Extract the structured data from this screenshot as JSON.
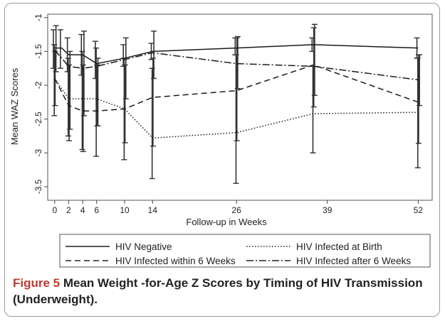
{
  "figure": {
    "label": "Figure 5",
    "title": "Mean Weight -for-Age Z Scores by Timing of HIV Transmission (Underweight)."
  },
  "chart_data": {
    "type": "line",
    "title": "",
    "xlabel": "Follow-up in Weeks",
    "ylabel": "Mean WAZ Scores",
    "x_ticks": [
      0,
      2,
      4,
      6,
      10,
      14,
      26,
      39,
      52
    ],
    "y_ticks": [
      -1,
      -1.5,
      -2,
      -2.5,
      -3,
      -3.5
    ],
    "y_tick_labels": [
      "-1",
      "-1.5",
      "-2",
      "-2.5",
      "-3",
      "-3.5"
    ],
    "xlim": [
      -1,
      54
    ],
    "ylim": [
      -3.7,
      -0.95
    ],
    "grid": false,
    "legend_position": "bottom",
    "series": [
      {
        "name": "HIV  Negative",
        "style": "solid",
        "x": [
          0,
          1,
          2,
          4,
          6,
          10,
          14,
          26,
          37,
          52
        ],
        "y": [
          -1.45,
          -1.45,
          -1.55,
          -1.55,
          -1.68,
          -1.6,
          -1.5,
          -1.45,
          -1.4,
          -1.45
        ],
        "err_low": [
          -1.75,
          -1.75,
          -1.8,
          -1.85,
          -1.9,
          -1.72,
          -1.62,
          -1.55,
          -1.5,
          -1.6
        ],
        "err_high": [
          -1.18,
          -1.18,
          -1.3,
          -1.25,
          -1.35,
          -1.4,
          -1.38,
          -1.3,
          -1.3,
          -1.3
        ]
      },
      {
        "name": "HIV Infected  at Birth",
        "style": "dotted",
        "x": [
          0,
          2,
          4,
          6,
          10,
          14,
          26,
          37,
          52
        ],
        "y": [
          -1.9,
          -2.2,
          -2.2,
          -2.2,
          -2.35,
          -2.78,
          -2.7,
          -2.42,
          -2.4
        ],
        "err_low": [
          -2.45,
          -2.75,
          -2.95,
          -3.05,
          -3.1,
          -3.38,
          -3.45,
          -3.0,
          -3.22
        ],
        "err_high": [
          -1.4,
          -1.6,
          -1.5,
          -1.45,
          -1.6,
          -1.75,
          -1.55,
          -1.72,
          -1.6
        ]
      },
      {
        "name": "HIV Infected  within 6 Weeks",
        "style": "dashed",
        "x": [
          0,
          2,
          4,
          6,
          10,
          14,
          26,
          37,
          52
        ],
        "y": [
          -1.9,
          -2.3,
          -2.38,
          -2.38,
          -2.35,
          -2.18,
          -2.08,
          -1.7,
          -2.25
        ],
        "err_low": [
          -2.3,
          -2.82,
          -2.98,
          -2.6,
          -2.85,
          -2.9,
          -2.82,
          -2.32,
          -2.86
        ],
        "err_high": [
          -1.5,
          -1.7,
          -1.7,
          -1.7,
          -1.7,
          -1.6,
          -1.3,
          -1.15,
          -1.55
        ]
      },
      {
        "name": "HIV Infected after 6 Weeks",
        "style": "dashdot",
        "x": [
          0,
          2,
          4,
          6,
          10,
          14,
          26,
          37,
          52
        ],
        "y": [
          -1.48,
          -1.72,
          -1.75,
          -1.72,
          -1.62,
          -1.52,
          -1.68,
          -1.72,
          -1.92
        ],
        "err_low": [
          -1.8,
          -2.65,
          -2.45,
          -2.6,
          -2.2,
          -1.9,
          -2.05,
          -2.15,
          -2.3
        ],
        "err_high": [
          -1.12,
          -1.5,
          -1.2,
          -1.6,
          -1.3,
          -1.2,
          -1.28,
          -1.1,
          -1.55
        ]
      }
    ]
  }
}
